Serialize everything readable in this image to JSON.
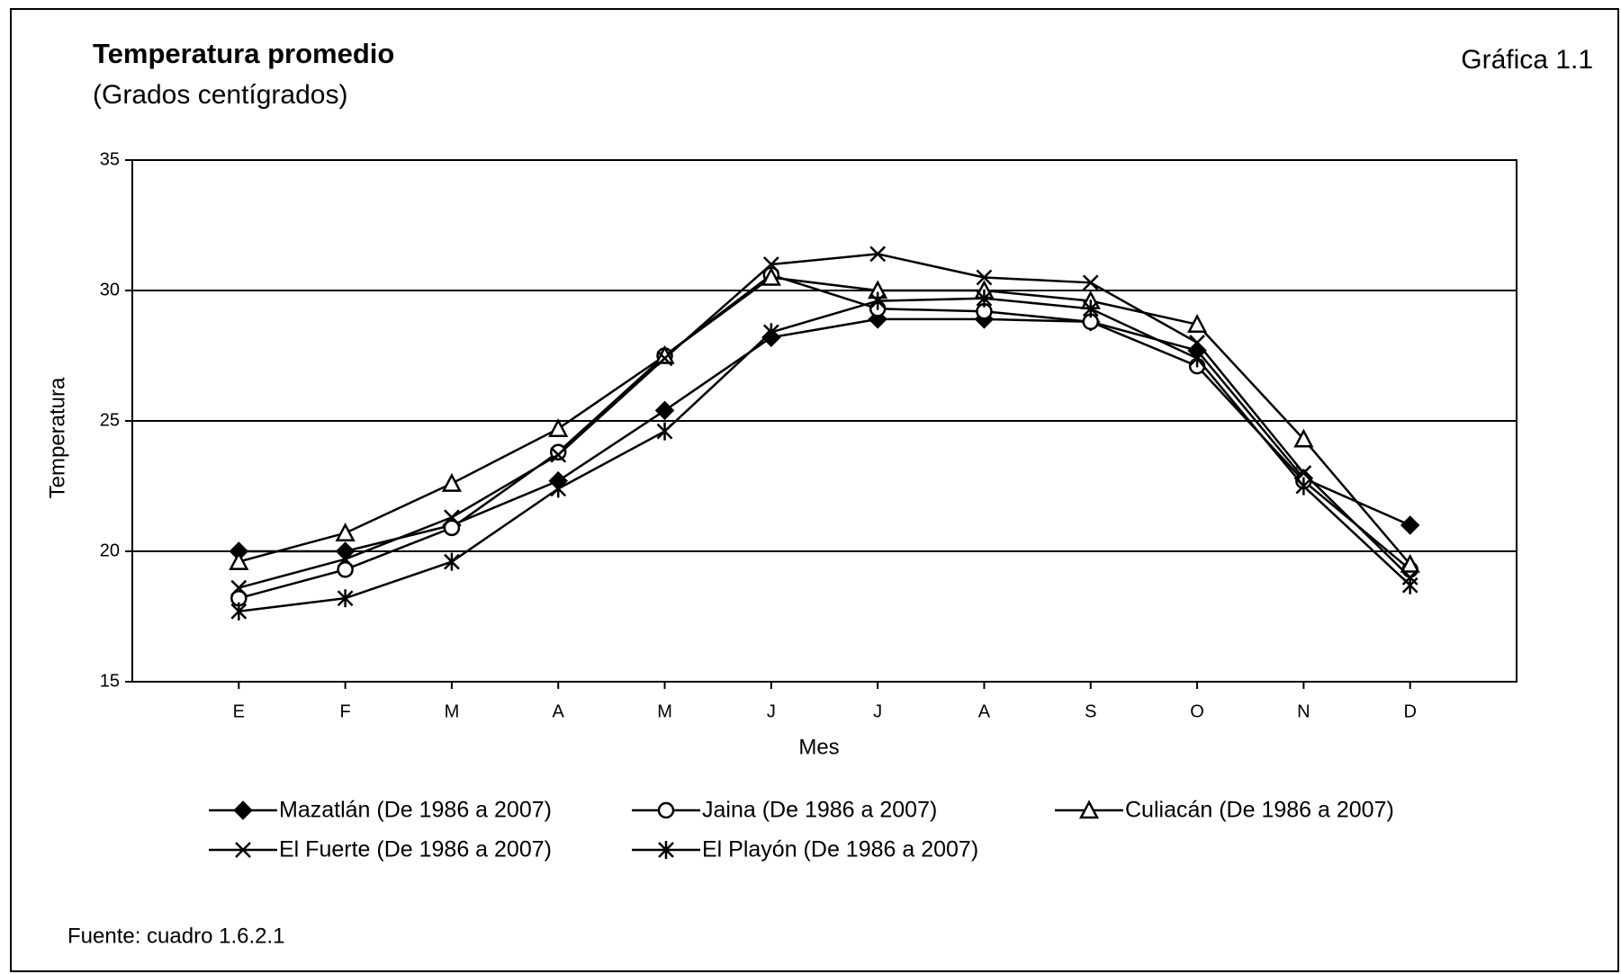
{
  "chart_data": {
    "type": "line",
    "title": "Temperatura promedio",
    "subtitle": "(Grados centígrados)",
    "figure_label": "Gráfica 1.1",
    "source": "Fuente: cuadro 1.6.2.1",
    "x_label": "Mes",
    "y_label": "Temperatura",
    "categories": [
      "E",
      "F",
      "M",
      "A",
      "M",
      "J",
      "J",
      "A",
      "S",
      "O",
      "N",
      "D"
    ],
    "ylim": [
      15,
      35
    ],
    "yticks": [
      15,
      20,
      25,
      30,
      35
    ],
    "grid": true,
    "series": [
      {
        "name": "Mazatlán (De 1986 a 2007)",
        "color": "#000000",
        "marker": "diamond",
        "values": [
          20.0,
          20.0,
          21.0,
          22.7,
          25.4,
          28.2,
          28.9,
          28.9,
          28.8,
          27.7,
          22.8,
          21.0
        ]
      },
      {
        "name": "Jaina (De 1986 a 2007)",
        "color": "#000000",
        "marker": "circle",
        "values": [
          18.2,
          19.3,
          20.9,
          23.8,
          27.5,
          30.6,
          29.3,
          29.2,
          28.8,
          27.1,
          22.7,
          19.3
        ]
      },
      {
        "name": "Culiacán (De 1986 a 2007)",
        "color": "#000000",
        "marker": "triangle",
        "values": [
          19.6,
          20.7,
          22.6,
          24.7,
          27.5,
          30.5,
          30.0,
          30.0,
          29.6,
          28.7,
          24.3,
          19.5
        ]
      },
      {
        "name": "El Fuerte (De 1986 a 2007)",
        "color": "#000000",
        "marker": "x",
        "values": [
          18.6,
          19.7,
          21.3,
          23.7,
          27.4,
          31.0,
          31.4,
          30.5,
          30.3,
          28.0,
          23.0,
          19.0
        ]
      },
      {
        "name": "El Playón (De 1986 a 2007)",
        "color": "#000000",
        "marker": "star",
        "values": [
          17.7,
          18.2,
          19.6,
          22.4,
          24.6,
          28.4,
          29.6,
          29.7,
          29.3,
          27.4,
          22.5,
          18.7
        ]
      }
    ]
  }
}
